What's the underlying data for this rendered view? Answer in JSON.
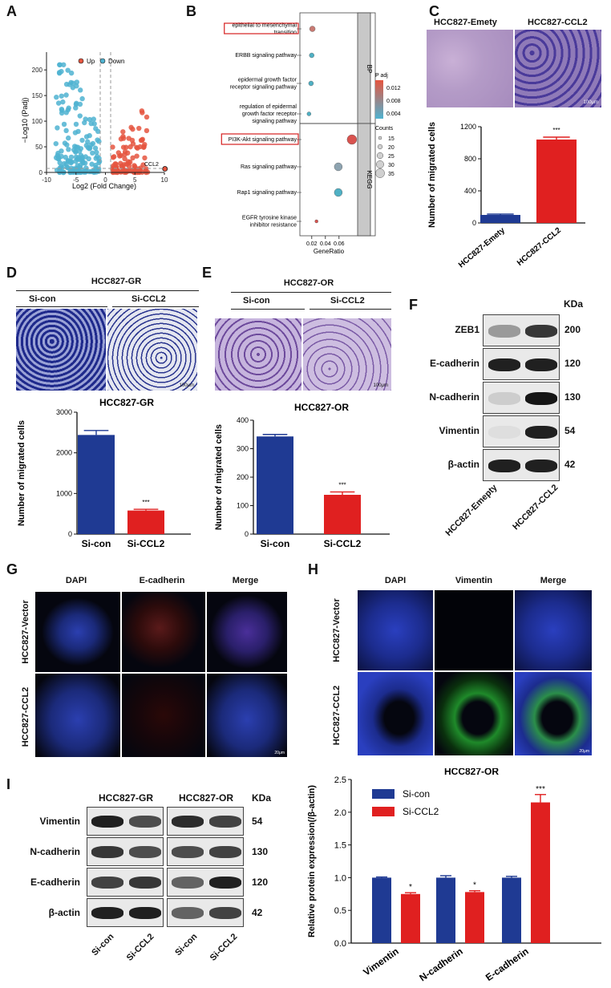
{
  "panels": {
    "A": {
      "label": "A",
      "legend": [
        "Up",
        "Down"
      ],
      "ylabel": "−Log10 (Padj)",
      "xlabel": "Log2 (Fold Change)",
      "gene_label": "CCL2",
      "colors": {
        "up": "#e5553f",
        "down": "#4fb3d1"
      },
      "chart_data": {
        "type": "scatter",
        "xlim": [
          -10,
          10
        ],
        "ylim": [
          0,
          230
        ],
        "xticks": [
          -10,
          -5,
          0,
          5,
          10
        ],
        "yticks": [
          0,
          50,
          100,
          150,
          200
        ],
        "highlight": {
          "name": "CCL2",
          "x": 10.1,
          "y": 7
        }
      }
    },
    "B": {
      "label": "B",
      "xlabel": "GeneRatio",
      "facets": [
        "BP",
        "KEGG"
      ],
      "padj_title": "P adj",
      "padj_ticks": [
        "0.012",
        "0.008",
        "0.004"
      ],
      "counts_title": "Counts",
      "counts_ticks": [
        "15",
        "20",
        "25",
        "30",
        "35"
      ],
      "chart_data": {
        "type": "scatter",
        "xticks": [
          "0.02",
          "0.04",
          "0.06"
        ],
        "terms": [
          {
            "name": "epithelial to mesenchymal transition",
            "facet": "BP",
            "ratio": 0.021,
            "color": "#c87a72",
            "size": 3.5,
            "boxed": true
          },
          {
            "name": "ERBB signaling pathway",
            "facet": "BP",
            "ratio": 0.02,
            "color": "#4fb0c4",
            "size": 3,
            "boxed": false
          },
          {
            "name": "epidermal growth factor receptor signaling pathway",
            "facet": "BP",
            "ratio": 0.019,
            "color": "#4fb0c4",
            "size": 3,
            "boxed": false
          },
          {
            "name": "regulation of epidermal growth factor receptor signaling pathway",
            "facet": "BP",
            "ratio": 0.016,
            "color": "#4fb0c4",
            "size": 2.5,
            "boxed": false
          },
          {
            "name": "PI3K-Akt signaling pathway",
            "facet": "KEGG",
            "ratio": 0.079,
            "color": "#d9534f",
            "size": 6,
            "boxed": true
          },
          {
            "name": "Ras signaling pathway",
            "facet": "KEGG",
            "ratio": 0.059,
            "color": "#8da3b0",
            "size": 5,
            "boxed": false
          },
          {
            "name": "Rap1 signaling pathway",
            "facet": "KEGG",
            "ratio": 0.059,
            "color": "#4fb0c4",
            "size": 5,
            "boxed": false
          },
          {
            "name": "EGFR tyrosine kinase inhibitor resistance",
            "facet": "KEGG",
            "ratio": 0.027,
            "color": "#d9534f",
            "size": 2,
            "boxed": false
          }
        ]
      }
    },
    "C": {
      "label": "C",
      "img_labels": [
        "HCC827-Emety",
        "HCC827-CCL2"
      ],
      "scale": "100μm",
      "ylabel": "Number of migrated cells",
      "sig": "***",
      "chart_data": {
        "type": "bar",
        "categories": [
          "HCC827-Emety",
          "HCC827-CCL2"
        ],
        "values": [
          100,
          1040
        ],
        "errors": [
          10,
          30
        ],
        "colors": [
          "#1f3a93",
          "#e02020"
        ],
        "ylim": [
          0,
          1200
        ],
        "yticks": [
          0,
          400,
          800,
          1200
        ]
      }
    },
    "D": {
      "label": "D",
      "group": "HCC827-GR",
      "img_labels": [
        "Si-con",
        "Si-CCL2"
      ],
      "scale": "100μm",
      "title": "HCC827-GR",
      "ylabel": "Number of migrated cells",
      "sig": "***",
      "chart_data": {
        "type": "bar",
        "categories": [
          "Si-con",
          "Si-CCL2"
        ],
        "values": [
          2440,
          580
        ],
        "errors": [
          110,
          30
        ],
        "colors": [
          "#1f3a93",
          "#e02020"
        ],
        "ylim": [
          0,
          3000
        ],
        "yticks": [
          0,
          1000,
          2000,
          3000
        ]
      }
    },
    "E": {
      "label": "E",
      "group": "HCC827-OR",
      "img_labels": [
        "Si-con",
        "Si-CCL2"
      ],
      "scale": "100μm",
      "title": "HCC827-OR",
      "ylabel": "Number of migrated cells",
      "sig": "***",
      "chart_data": {
        "type": "bar",
        "categories": [
          "Si-con",
          "Si-CCL2"
        ],
        "values": [
          343,
          138
        ],
        "errors": [
          7,
          10
        ],
        "colors": [
          "#1f3a93",
          "#e02020"
        ],
        "ylim": [
          0,
          400
        ],
        "yticks": [
          0,
          100,
          200,
          300,
          400
        ]
      }
    },
    "F": {
      "label": "F",
      "kda_header": "KDa",
      "proteins": [
        {
          "name": "ZEB1",
          "kda": "200"
        },
        {
          "name": "E-cadherin",
          "kda": "120"
        },
        {
          "name": "N-cadherin",
          "kda": "130"
        },
        {
          "name": "Vimentin",
          "kda": "54"
        },
        {
          "name": "β-actin",
          "kda": "42"
        }
      ],
      "lanes": [
        "HCC827-Emepty",
        "HCC827-CCL2"
      ]
    },
    "G": {
      "label": "G",
      "cols": [
        "DAPI",
        "E-cadherin",
        "Merge"
      ],
      "rows": [
        "HCC827-Vector",
        "HCC827-CCL2"
      ],
      "scale": "20μm"
    },
    "H": {
      "label": "H",
      "cols": [
        "DAPI",
        "Vimentin",
        "Merge"
      ],
      "rows": [
        "HCC827-Vector",
        "HCC827-CCL2"
      ],
      "scale": "20μm"
    },
    "I": {
      "label": "I",
      "groups": [
        "HCC827-GR",
        "HCC827-OR"
      ],
      "kda_header": "KDa",
      "proteins": [
        {
          "name": "Vimentin",
          "kda": "54"
        },
        {
          "name": "N-cadherin",
          "kda": "130"
        },
        {
          "name": "E-cadherin",
          "kda": "120"
        },
        {
          "name": "β-actin",
          "kda": "42"
        }
      ],
      "lanes": [
        "Si-con",
        "Si-CCL2",
        "Si-con",
        "Si-CCL2"
      ],
      "title": "HCC827-OR",
      "ylabel": "Relative protein expression(/β-actin)",
      "legend": [
        "Si-con",
        "Si-CCL2"
      ],
      "chart_data": {
        "type": "bar",
        "categories": [
          "Vimentin",
          "N-cadherin",
          "E-cadherin"
        ],
        "series": [
          {
            "name": "Si-con",
            "values": [
              1.0,
              1.0,
              1.0
            ],
            "errors": [
              0.01,
              0.03,
              0.02
            ]
          },
          {
            "name": "Si-CCL2",
            "values": [
              0.75,
              0.78,
              2.15
            ],
            "errors": [
              0.02,
              0.02,
              0.12
            ]
          }
        ],
        "sig": [
          "*",
          "*",
          "***"
        ],
        "colors": [
          "#1f3a93",
          "#e02020"
        ],
        "ylim": [
          0,
          2.5
        ],
        "yticks": [
          0.0,
          0.5,
          1.0,
          1.5,
          2.0,
          2.5
        ]
      }
    }
  }
}
